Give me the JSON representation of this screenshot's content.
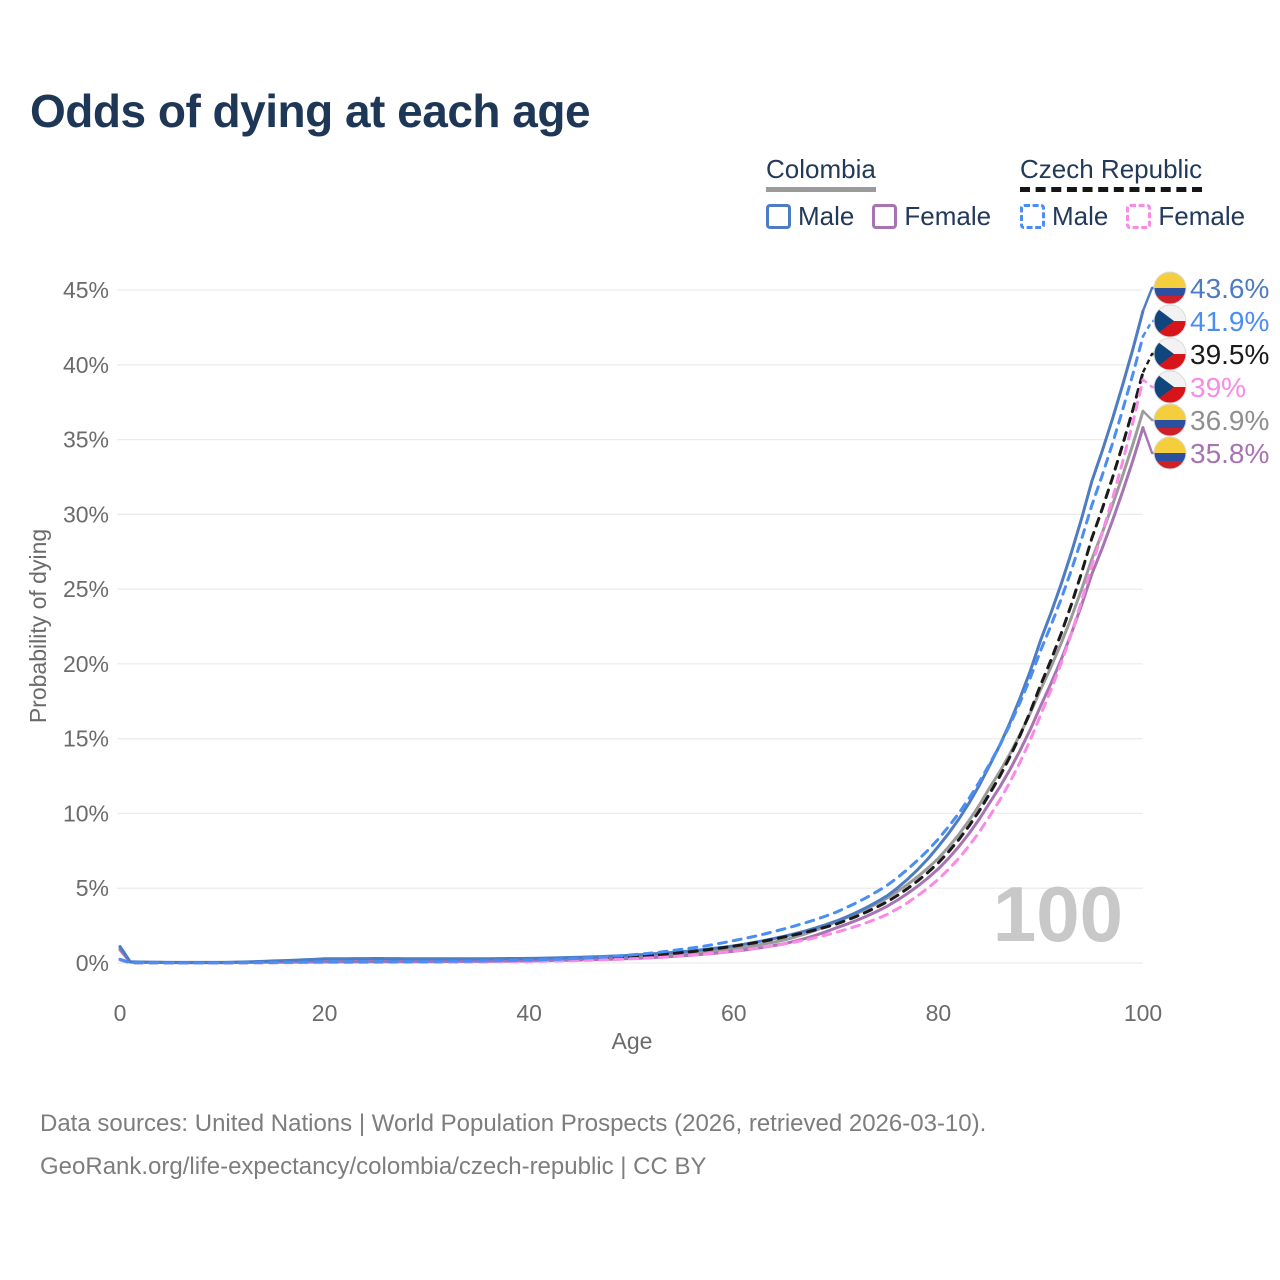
{
  "header": {
    "title": "Odds of dying at each age"
  },
  "legend": {
    "colombia": {
      "label": "Colombia",
      "male_label": "Male",
      "female_label": "Female",
      "male_color": "#4d7cc3",
      "female_color": "#a873b2",
      "all_color": "#9b9b9b",
      "line_style": "solid"
    },
    "czech": {
      "label": "Czech Republic",
      "male_label": "Male",
      "female_label": "Female",
      "male_color": "#4a8df5",
      "female_color": "#f98ae5",
      "all_color": "#1a1a1a",
      "line_style": "dashed"
    }
  },
  "axes": {
    "y_label": "Probability of dying",
    "x_label": "Age",
    "y_ticks": [
      "0%",
      "5%",
      "10%",
      "15%",
      "20%",
      "25%",
      "30%",
      "35%",
      "40%",
      "45%"
    ],
    "y_tick_values": [
      0,
      5,
      10,
      15,
      20,
      25,
      30,
      35,
      40,
      45
    ],
    "x_ticks": [
      "0",
      "20",
      "40",
      "60",
      "80",
      "100"
    ],
    "x_tick_values": [
      0,
      20,
      40,
      60,
      80,
      100
    ]
  },
  "watermark": "100",
  "end_labels": [
    {
      "series": "colombia-male",
      "flag": "colombia",
      "text": "43.6%",
      "value": 43.6,
      "color": "#4d7cc3"
    },
    {
      "series": "czech-male",
      "flag": "czech",
      "text": "41.9%",
      "value": 41.9,
      "color": "#4a8df5"
    },
    {
      "series": "czech-all",
      "flag": "czech",
      "text": "39.5%",
      "value": 39.5,
      "color": "#1a1a1a"
    },
    {
      "series": "czech-female",
      "flag": "czech",
      "text": "39%",
      "value": 39.0,
      "color": "#f98ae5"
    },
    {
      "series": "colombia-all",
      "flag": "colombia",
      "text": "36.9%",
      "value": 36.9,
      "color": "#8f8f8f"
    },
    {
      "series": "colombia-female",
      "flag": "colombia",
      "text": "35.8%",
      "value": 35.8,
      "color": "#a873b2"
    }
  ],
  "footer": {
    "line1": "Data sources: United Nations | World Population Prospects (2026, retrieved 2026-03-10).",
    "line2": "GeoRank.org/life-expectancy/colombia/czech-republic | CC BY"
  },
  "chart_data": {
    "type": "line",
    "title": "Odds of dying at each age",
    "xlabel": "Age",
    "ylabel": "Probability of dying",
    "x_range": [
      0,
      100
    ],
    "y_range_percent": [
      0,
      45
    ],
    "grid": "horizontal",
    "legend_position": "top-right",
    "unit": "percent probability of dying at each age",
    "x": [
      0,
      1,
      5,
      10,
      15,
      20,
      25,
      30,
      35,
      40,
      45,
      50,
      55,
      60,
      65,
      70,
      75,
      80,
      85,
      90,
      95,
      100
    ],
    "series": [
      {
        "id": "colombia-all",
        "name": "Colombia (all)",
        "country": "Colombia",
        "sex": "all",
        "color": "#9b9b9b",
        "dash": "solid",
        "end_label": "36.9%",
        "values": [
          1.0,
          0.07,
          0.03,
          0.03,
          0.09,
          0.17,
          0.18,
          0.17,
          0.18,
          0.21,
          0.28,
          0.4,
          0.61,
          0.95,
          1.55,
          2.75,
          4.35,
          7.0,
          11.7,
          18.3,
          27.0,
          36.9
        ]
      },
      {
        "id": "colombia-female",
        "name": "Colombia Female",
        "country": "Colombia",
        "sex": "female",
        "color": "#a873b2",
        "dash": "solid",
        "end_label": "35.8%",
        "values": [
          0.88,
          0.06,
          0.03,
          0.03,
          0.05,
          0.07,
          0.08,
          0.09,
          0.11,
          0.14,
          0.2,
          0.3,
          0.48,
          0.78,
          1.3,
          2.35,
          3.8,
          6.3,
          10.7,
          17.2,
          26.0,
          35.8
        ]
      },
      {
        "id": "colombia-male",
        "name": "Colombia Male",
        "country": "Colombia",
        "sex": "male",
        "color": "#4d7cc3",
        "dash": "solid",
        "end_label": "43.6%",
        "values": [
          1.1,
          0.08,
          0.04,
          0.04,
          0.14,
          0.28,
          0.3,
          0.28,
          0.28,
          0.31,
          0.38,
          0.52,
          0.76,
          1.15,
          1.8,
          2.8,
          4.5,
          7.8,
          13.2,
          21.6,
          32.2,
          43.6
        ]
      },
      {
        "id": "czech-all",
        "name": "Czech Republic (all)",
        "country": "Czech Republic",
        "sex": "all",
        "color": "#1a1a1a",
        "dash": "dashed",
        "end_label": "39.5%",
        "values": [
          0.22,
          0.02,
          0.01,
          0.01,
          0.03,
          0.06,
          0.07,
          0.08,
          0.1,
          0.15,
          0.24,
          0.41,
          0.7,
          1.13,
          1.75,
          2.6,
          4.1,
          6.7,
          11.3,
          18.6,
          28.4,
          39.5
        ]
      },
      {
        "id": "czech-female",
        "name": "Czech Republic Female",
        "country": "Czech Republic",
        "sex": "female",
        "color": "#f98ae5",
        "dash": "dashed",
        "end_label": "39%",
        "values": [
          0.2,
          0.02,
          0.01,
          0.01,
          0.02,
          0.03,
          0.04,
          0.05,
          0.07,
          0.11,
          0.17,
          0.28,
          0.48,
          0.8,
          1.28,
          2.05,
          3.25,
          5.6,
          9.8,
          16.6,
          26.6,
          39.0
        ]
      },
      {
        "id": "czech-male",
        "name": "Czech Republic Male",
        "country": "Czech Republic",
        "sex": "male",
        "color": "#4a8df5",
        "dash": "dashed",
        "end_label": "41.9%",
        "values": [
          0.25,
          0.02,
          0.01,
          0.01,
          0.04,
          0.09,
          0.09,
          0.1,
          0.13,
          0.19,
          0.31,
          0.54,
          0.92,
          1.5,
          2.3,
          3.4,
          5.2,
          8.3,
          13.3,
          20.9,
          30.6,
          41.9
        ]
      }
    ],
    "flag_colors": {
      "colombia": {
        "yellow": "#F5CE3E",
        "blue": "#2C50A0",
        "red": "#CE2028"
      },
      "czech": {
        "white": "#F2F2F2",
        "red": "#D7141A",
        "blue": "#11457E"
      }
    }
  }
}
